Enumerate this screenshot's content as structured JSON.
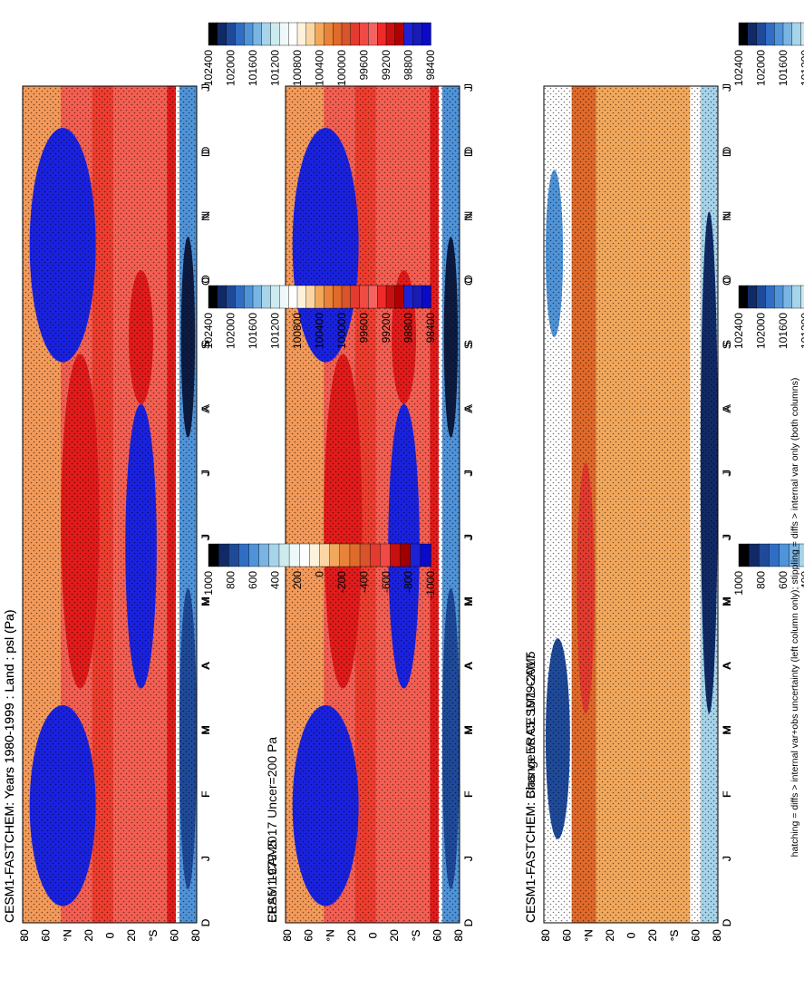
{
  "footnote": "hatching = diffs > internal var+obs uncertainty (left column only); stippling = diffs > internal var only (both columns)",
  "colors": {
    "abs": [
      "#000000",
      "#112a66",
      "#1f4a9a",
      "#2f6ec4",
      "#4f93d8",
      "#7ab4e2",
      "#a6d4ea",
      "#cdebef",
      "#eef8f8",
      "#ffffff",
      "#fff2dc",
      "#fbd6a4",
      "#f2a85c",
      "#e8843a",
      "#e06a2a",
      "#d8542a",
      "#e33b2f",
      "#f04a44",
      "#f46360",
      "#ee2a2a",
      "#c81010",
      "#b00000",
      "#1e22d6",
      "#1a1ab4",
      "#0a0ac8"
    ],
    "diff": [
      "#000000",
      "#112a66",
      "#1f4a9a",
      "#2f6ec4",
      "#4f93d8",
      "#7ab4e2",
      "#a6d4ea",
      "#cdebef",
      "#eef8f8",
      "#ffffff",
      "#fff2dc",
      "#fbd6a4",
      "#f2a85c",
      "#e8843a",
      "#e06a2a",
      "#d8542a",
      "#e33b2f",
      "#f04a44",
      "#c81010",
      "#a00000",
      "#1e22d6",
      "#0a0ac8"
    ]
  },
  "abs_ticks": [
    "98400",
    "98800",
    "99200",
    "99600",
    "100000",
    "100400",
    "100800",
    "101200",
    "101600",
    "102000",
    "102400"
  ],
  "diff_ticks": [
    "-1000",
    "-800",
    "-600",
    "-400",
    "-200",
    "0",
    "200",
    "400",
    "600",
    "800",
    "1000"
  ],
  "lat_ticks": [
    "80",
    "60",
    "°N",
    "20",
    "0",
    "20",
    "°S",
    "60",
    "80"
  ],
  "month_ticks": [
    "D",
    "J",
    "F",
    "M",
    "A",
    "M",
    "J",
    "J",
    "A",
    "S",
    "O",
    "N",
    "D",
    "J"
  ],
  "chart_data": [
    {
      "type": "heatmap",
      "panel": "left-top",
      "title": "CESM1-FASTCHEM: Years 1980-1999 : Land : psl (Pa)",
      "x": [
        "D",
        "J",
        "F",
        "M",
        "A",
        "M",
        "J",
        "J",
        "A",
        "S",
        "O",
        "N",
        "D",
        "J"
      ],
      "y": [
        "80",
        "60",
        "°N",
        "20",
        "0",
        "20",
        "°S",
        "60",
        "80"
      ],
      "zlim": [
        98400,
        102400
      ]
    },
    {
      "type": "heatmap",
      "panel": "left-middle",
      "title": "ERA5: 1979-2017 Uncer=200 Pa",
      "x": [
        "D",
        "J",
        "F",
        "M",
        "A",
        "M",
        "J",
        "J",
        "A",
        "S",
        "O",
        "N",
        "D",
        "J"
      ],
      "y": [
        "80",
        "60",
        "°N",
        "20",
        "0",
        "20",
        "°S",
        "60",
        "80"
      ],
      "zlim": [
        98400,
        102400
      ]
    },
    {
      "type": "heatmap",
      "panel": "left-bottom",
      "title": "CESM1-FASTCHEM: Bias vs ERA5: 1979-2017",
      "x": [
        "D",
        "J",
        "F",
        "M",
        "A",
        "M",
        "J",
        "J",
        "A",
        "S",
        "O",
        "N",
        "D",
        "J"
      ],
      "y": [
        "80",
        "60",
        "°N",
        "20",
        "0",
        "20",
        "°S",
        "60",
        "80"
      ],
      "zlim": [
        -1000,
        1000
      ]
    },
    {
      "type": "heatmap",
      "panel": "right-top",
      "title": "CESM1-FASTCHEM: Years 1980-1999 : Land : psl (Pa)",
      "x": [
        "D",
        "J",
        "F",
        "M",
        "A",
        "M",
        "J",
        "J",
        "A",
        "S",
        "O",
        "N",
        "D",
        "J"
      ],
      "y": [
        "80",
        "60",
        "°N",
        "20",
        "0",
        "20",
        "°S",
        "60",
        "80"
      ],
      "zlim": [
        98400,
        102400
      ]
    },
    {
      "type": "heatmap",
      "panel": "right-middle",
      "title": "CESM1-CAM5",
      "x": [
        "D",
        "J",
        "F",
        "M",
        "A",
        "M",
        "J",
        "J",
        "A",
        "S",
        "O",
        "N",
        "D",
        "J"
      ],
      "y": [
        "80",
        "60",
        "°N",
        "20",
        "0",
        "20",
        "°S",
        "60",
        "80"
      ],
      "zlim": [
        98400,
        102400
      ]
    },
    {
      "type": "heatmap",
      "panel": "right-bottom",
      "title": "CESM1-FASTCHEM: Change vs CESM1-CAM5",
      "x": [
        "D",
        "J",
        "F",
        "M",
        "A",
        "M",
        "J",
        "J",
        "A",
        "S",
        "O",
        "N",
        "D",
        "J"
      ],
      "y": [
        "80",
        "60",
        "°N",
        "20",
        "0",
        "20",
        "°S",
        "60",
        "80"
      ],
      "zlim": [
        -1000,
        1000
      ]
    }
  ]
}
